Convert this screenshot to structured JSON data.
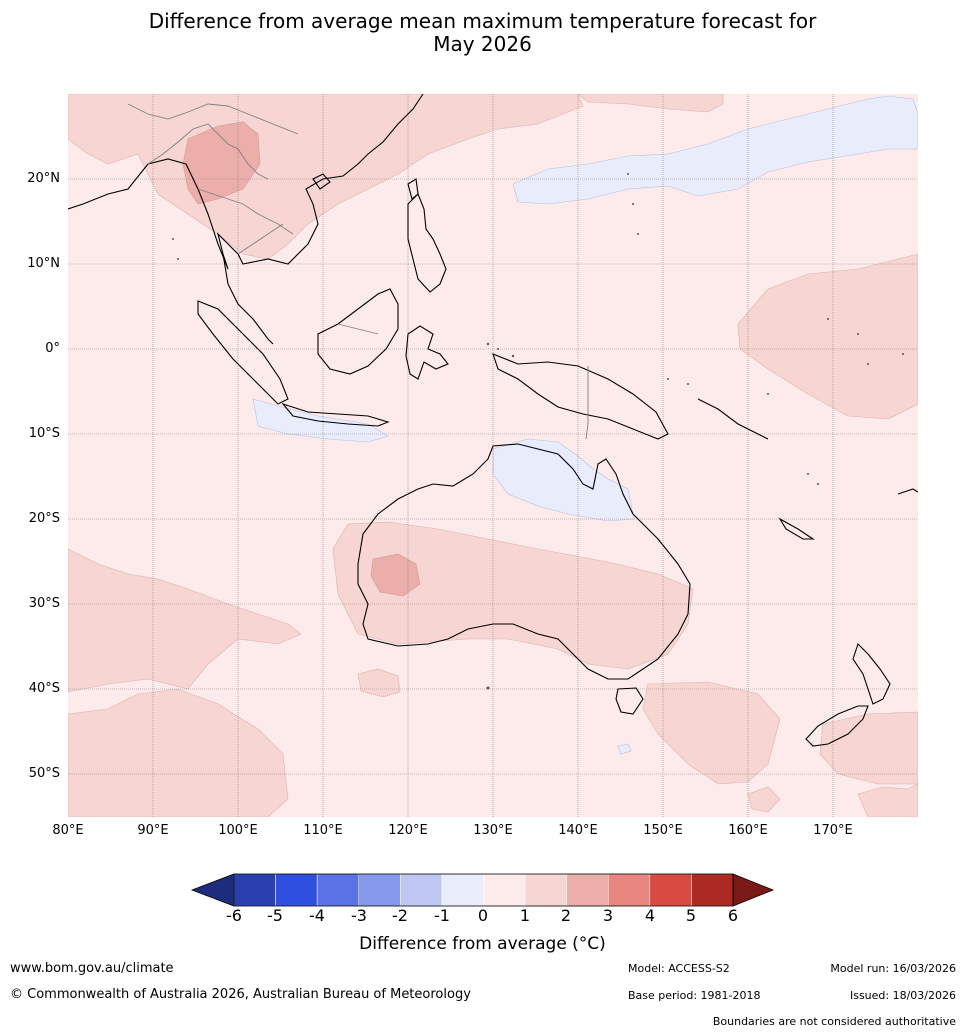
{
  "title": {
    "line1": "Difference from average mean maximum temperature forecast for",
    "line2": "May 2026"
  },
  "map": {
    "latitude_labels": [
      "20°N",
      "10°N",
      "0°",
      "10°S",
      "20°S",
      "30°S",
      "40°S",
      "50°S"
    ],
    "longitude_labels": [
      "80°E",
      "90°E",
      "100°E",
      "110°E",
      "120°E",
      "130°E",
      "140°E",
      "150°E",
      "160°E",
      "170°E"
    ]
  },
  "legend": {
    "ticks": [
      "-6",
      "-5",
      "-4",
      "-3",
      "-2",
      "-1",
      "0",
      "1",
      "2",
      "3",
      "4",
      "5",
      "6"
    ],
    "colors": [
      "#1e2c7e",
      "#2a3fb0",
      "#2e4fe0",
      "#5a72e4",
      "#8598ec",
      "#bfc6f3",
      "#e8ecfb",
      "#fcebea",
      "#f6d5d3",
      "#ecaeaa",
      "#e8857f",
      "#d94a40",
      "#ad2a22",
      "#7a1a16"
    ],
    "label": "Difference from average (°C)"
  },
  "footer": {
    "url": "www.bom.gov.au/climate",
    "copyright": "© Commonwealth of Australia 2026, Australian Bureau of Meteorology",
    "model": "Model: ACCESS-S2",
    "base_period": "Base period: 1981-2018",
    "model_run": "Model run: 16/03/2026",
    "issued": "Issued: 18/03/2026",
    "boundaries": "Boundaries are not considered authoritative"
  }
}
